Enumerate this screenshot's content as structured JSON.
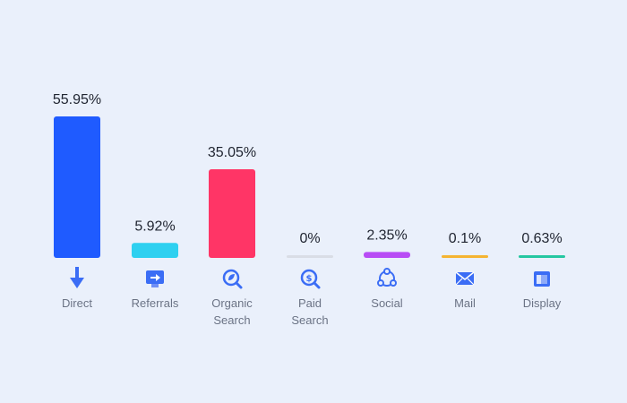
{
  "chart_data": {
    "type": "bar",
    "categories": [
      [
        "Direct"
      ],
      [
        "Referrals"
      ],
      [
        "Organic",
        "Search"
      ],
      [
        "Paid",
        "Search"
      ],
      [
        "Social"
      ],
      [
        "Mail"
      ],
      [
        "Display"
      ]
    ],
    "values": [
      55.95,
      5.92,
      35.05,
      0,
      2.35,
      0.1,
      0.63
    ],
    "value_labels": [
      "55.95%",
      "5.92%",
      "35.05%",
      "0%",
      "2.35%",
      "0.1%",
      "0.63%"
    ],
    "colors": [
      "#1f5bff",
      "#2ed0f0",
      "#ff3566",
      "#d9dde6",
      "#b84cf5",
      "#f5b431",
      "#26c7a1"
    ],
    "icons": [
      "arrow-down-icon",
      "referral-screen-icon",
      "organic-search-icon",
      "paid-search-icon",
      "social-network-icon",
      "mail-icon",
      "display-icon"
    ],
    "ylim": [
      0,
      60
    ],
    "grid": false,
    "legend": "none"
  }
}
